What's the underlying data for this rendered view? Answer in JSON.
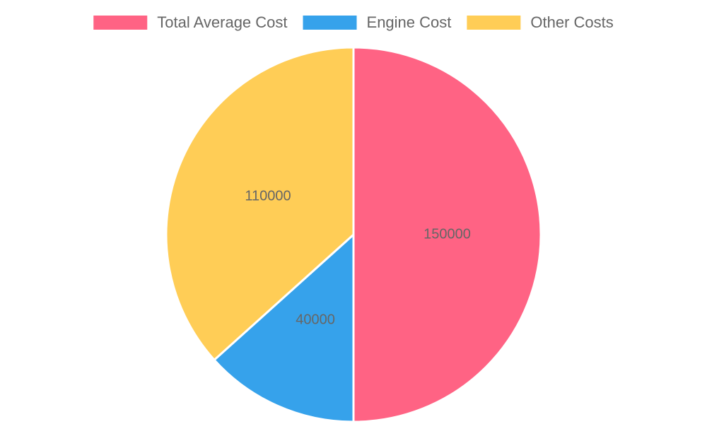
{
  "chart_data": {
    "type": "pie",
    "categories": [
      "Total Average Cost",
      "Engine Cost",
      "Other Costs"
    ],
    "values": [
      150000,
      40000,
      110000
    ],
    "colors": [
      "#ff6384",
      "#36a2eb",
      "#ffcd56"
    ],
    "legend": "top"
  }
}
